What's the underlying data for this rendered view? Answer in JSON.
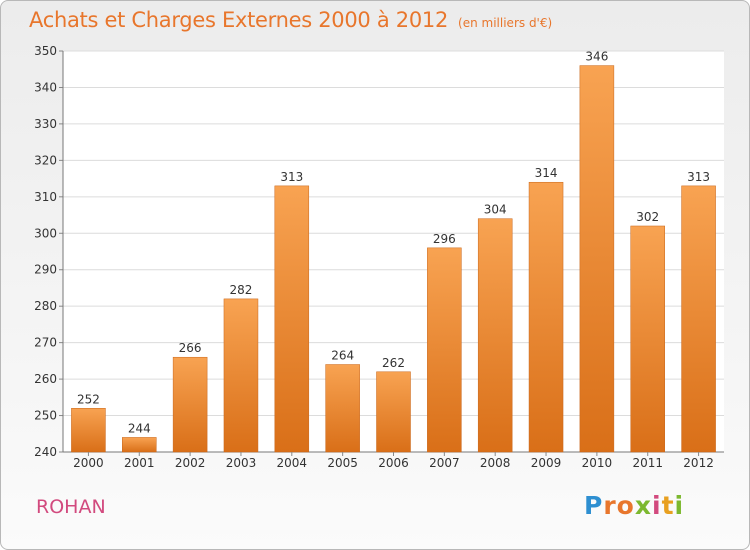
{
  "header": {
    "title": "Achats et Charges Externes 2000 à 2012",
    "subtitle": "(en milliers d'€)"
  },
  "footer": {
    "place": "ROHAN",
    "logo_letters": [
      "P",
      "r",
      "o",
      "x",
      "i",
      "t",
      "i"
    ],
    "logo_colors": [
      "#2e8fd1",
      "#e8762c",
      "#e8762c",
      "#7cb82f",
      "#d24a7e",
      "#e8a020",
      "#7cb82f"
    ]
  },
  "colors": {
    "bar_top": "#f8a352",
    "bar_bottom": "#d96f18",
    "title": "#e8762c",
    "place": "#d24a7e"
  },
  "chart_data": {
    "type": "bar",
    "title": "Achats et Charges Externes 2000 à 2012",
    "subtitle": "(en milliers d'€)",
    "xlabel": "",
    "ylabel": "",
    "categories": [
      "2000",
      "2001",
      "2002",
      "2003",
      "2004",
      "2005",
      "2006",
      "2007",
      "2008",
      "2009",
      "2010",
      "2011",
      "2012"
    ],
    "values": [
      252,
      244,
      266,
      282,
      313,
      264,
      262,
      296,
      304,
      314,
      346,
      302,
      313
    ],
    "ylim": [
      240,
      350
    ],
    "yticks": [
      240,
      250,
      260,
      270,
      280,
      290,
      300,
      310,
      320,
      330,
      340,
      350
    ],
    "grid": true
  }
}
